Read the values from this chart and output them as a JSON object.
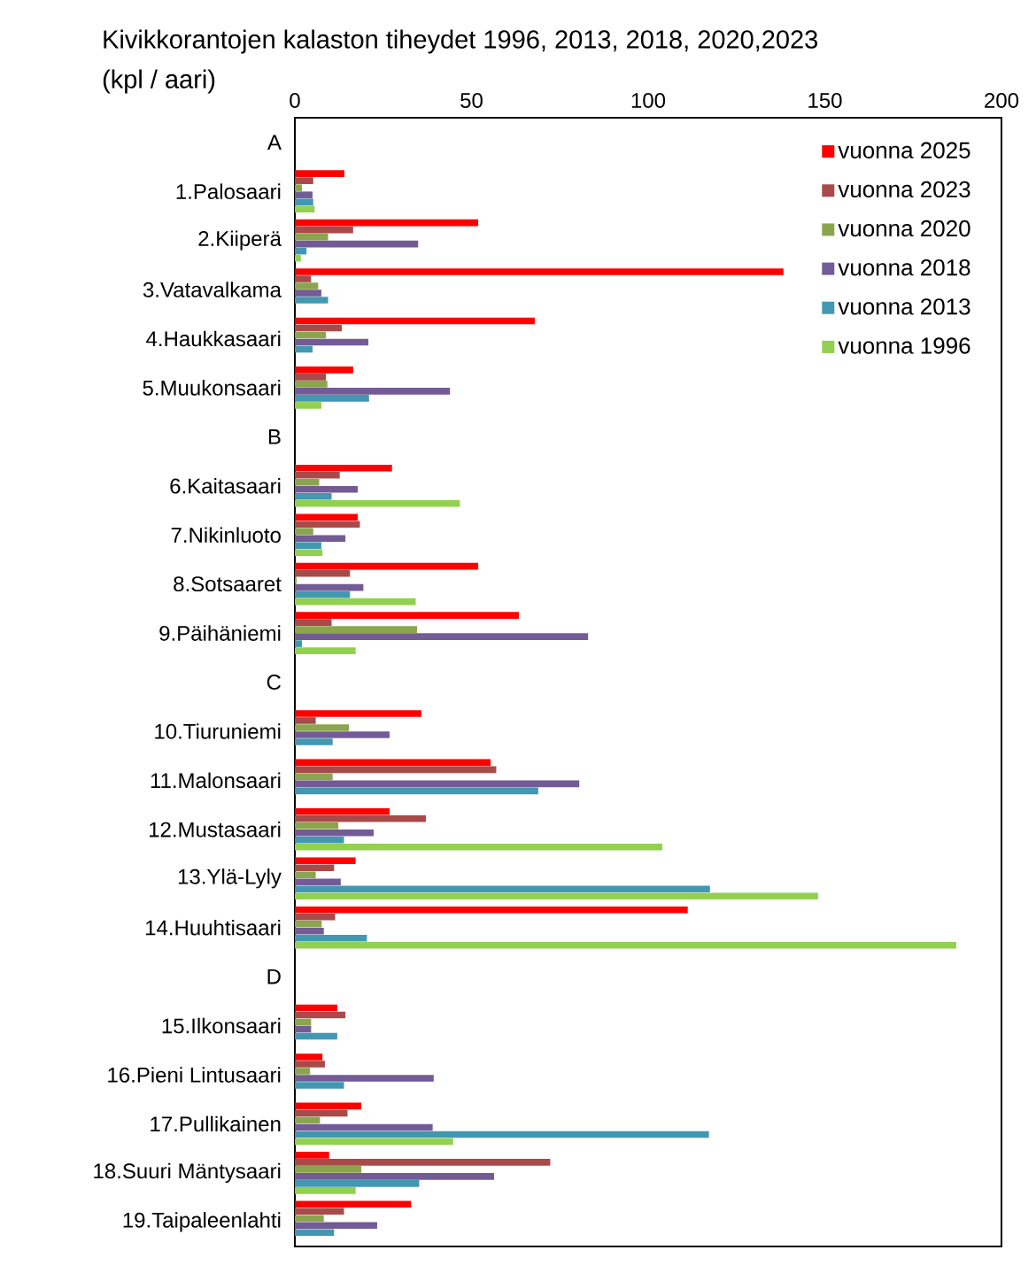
{
  "chart_data": {
    "type": "bar",
    "orientation": "horizontal",
    "title": "Kivikkorantojen kalaston tiheydet 1996, 2013, 2018, 2020,2023",
    "xlabel": "(kpl / aari)",
    "categories": [
      "A",
      "1.Palosaari",
      "2.Kiiperä",
      "3.Vatavalkama",
      "4.Haukkasaari",
      "5.Muukonsaari",
      "B",
      "6.Kaitasaari",
      "7.Nikinluoto",
      "8.Sotsaaret",
      "9.Päihäniemi",
      "C",
      "10.Tiuruniemi",
      "11.Malonsaari",
      "12.Mustasaari",
      "13.Ylä-Lyly",
      "14.Huuhtisaari",
      "D",
      "15.Ilkonsaari",
      "16.Pieni Lintusaari",
      "17.Pullikainen",
      "18.Suuri Mäntysaari",
      "19.Taipaleenlahti"
    ],
    "series": [
      {
        "name": "vuonna 2025",
        "color": "#ff0000",
        "values": [
          null,
          14.0,
          51.9,
          138.3,
          67.9,
          16.5,
          null,
          27.5,
          17.8,
          51.9,
          63.4,
          null,
          35.8,
          55.4,
          26.8,
          17.2,
          111.2,
          null,
          12.0,
          7.8,
          18.8,
          9.7,
          32.9
        ]
      },
      {
        "name": "vuonna 2023",
        "color": "#a84a4a",
        "values": [
          null,
          5.2,
          16.5,
          4.6,
          13.3,
          8.8,
          null,
          12.7,
          18.4,
          15.6,
          10.4,
          null,
          5.9,
          57.0,
          37.1,
          11.1,
          11.4,
          null,
          14.3,
          8.5,
          14.9,
          72.3,
          13.9
        ]
      },
      {
        "name": "vuonna 2020",
        "color": "#8aa54e",
        "values": [
          null,
          2.0,
          9.4,
          6.6,
          8.8,
          9.2,
          null,
          6.9,
          5.2,
          0.5,
          34.6,
          null,
          15.3,
          10.7,
          12.3,
          5.9,
          7.6,
          null,
          4.6,
          4.3,
          7.1,
          18.8,
          8.2
        ]
      },
      {
        "name": "vuonna 2018",
        "color": "#735b96",
        "values": [
          null,
          5.0,
          34.9,
          7.5,
          20.8,
          43.9,
          null,
          17.8,
          14.3,
          19.4,
          83.0,
          null,
          26.8,
          80.5,
          22.3,
          13.0,
          8.2,
          null,
          4.6,
          39.3,
          39.0,
          56.4,
          23.3
        ]
      },
      {
        "name": "vuonna 2013",
        "color": "#4298b0",
        "values": [
          null,
          5.2,
          3.3,
          9.4,
          5.0,
          21.0,
          null,
          10.4,
          7.5,
          15.6,
          2.0,
          null,
          10.7,
          68.9,
          13.9,
          117.5,
          20.4,
          null,
          12.0,
          13.9,
          117.2,
          35.2,
          11.1
        ]
      },
      {
        "name": "vuonna 1996",
        "color": "#92d050",
        "values": [
          null,
          5.6,
          1.7,
          null,
          null,
          7.5,
          null,
          46.7,
          7.8,
          34.2,
          17.2,
          null,
          null,
          null,
          104.0,
          148.1,
          187.2,
          null,
          null,
          null,
          44.8,
          17.2,
          null
        ]
      }
    ],
    "xlim": [
      0,
      200
    ],
    "xticks": [
      0,
      50,
      100,
      150,
      200
    ],
    "legend": "top right"
  }
}
